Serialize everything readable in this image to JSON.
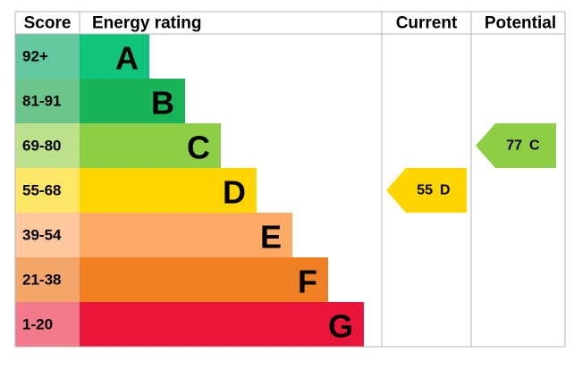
{
  "header": {
    "score": "Score",
    "rating": "Energy rating",
    "current": "Current",
    "potential": "Potential"
  },
  "bands": [
    {
      "score": "92+",
      "letter": "A"
    },
    {
      "score": "81-91",
      "letter": "B"
    },
    {
      "score": "69-80",
      "letter": "C"
    },
    {
      "score": "55-68",
      "letter": "D"
    },
    {
      "score": "39-54",
      "letter": "E"
    },
    {
      "score": "21-38",
      "letter": "F"
    },
    {
      "score": "1-20",
      "letter": "G"
    }
  ],
  "current": {
    "value": "55",
    "letter": "D"
  },
  "potential": {
    "value": "77",
    "letter": "C"
  }
}
